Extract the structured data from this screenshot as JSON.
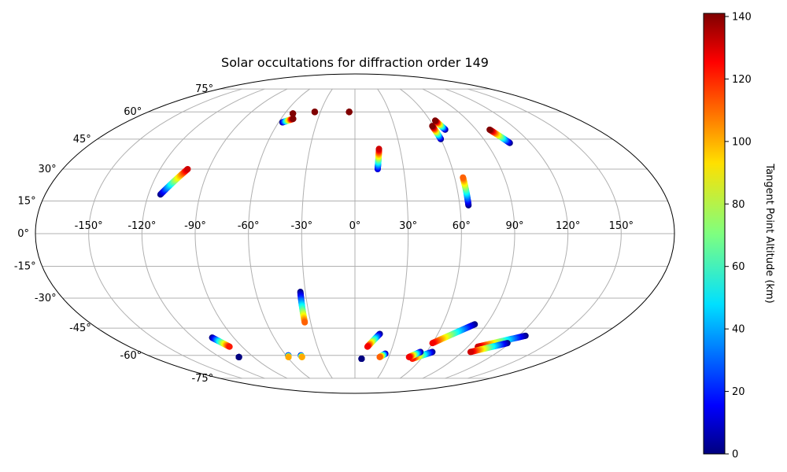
{
  "chart_data": {
    "type": "scatter",
    "projection": "mollweide",
    "title": "Solar occultations for diffraction order 149",
    "grid": true,
    "x_ticks": [
      -150,
      -120,
      -90,
      -60,
      -30,
      0,
      30,
      60,
      90,
      120,
      150
    ],
    "y_ticks": [
      -75,
      -60,
      -45,
      -30,
      -15,
      0,
      15,
      30,
      45,
      60,
      75
    ],
    "lon_range": [
      -180,
      180
    ],
    "lat_range": [
      -90,
      90
    ],
    "colorbar": {
      "label": "Tangent Point Altitude (km)",
      "range": [
        0,
        141
      ],
      "ticks": [
        0,
        20,
        40,
        60,
        80,
        100,
        120,
        140
      ],
      "colormap": "jet",
      "placement": "right"
    },
    "tracks": [
      {
        "lon0": -113,
        "lat0": 18,
        "alt0": 0,
        "lon1": -103,
        "lat1": 30,
        "alt1": 130
      },
      {
        "lon0": -57,
        "lat0": 54,
        "alt0": 0,
        "lon1": -50,
        "lat1": 56,
        "alt1": 141
      },
      {
        "lon0": -53,
        "lat0": 59,
        "alt0": 141,
        "lon1": -53,
        "lat1": 59,
        "alt1": 141
      },
      {
        "lon0": -35,
        "lat0": 60,
        "alt0": 141,
        "lon1": -35,
        "lat1": 60,
        "alt1": 141
      },
      {
        "lon0": -5,
        "lat0": 60,
        "alt0": 141,
        "lon1": -5,
        "lat1": 60,
        "alt1": 141
      },
      {
        "lon0": 14,
        "lat0": 30,
        "alt0": 10,
        "lon1": 16,
        "lat1": 40,
        "alt1": 130
      },
      {
        "lon0": 60,
        "lat0": 45,
        "alt0": 0,
        "lon1": 59,
        "lat1": 52,
        "alt1": 141
      },
      {
        "lon0": 67,
        "lat0": 50,
        "alt0": 0,
        "lon1": 64,
        "lat1": 55,
        "alt1": 141
      },
      {
        "lon0": 106,
        "lat0": 43,
        "alt0": 0,
        "lon1": 100,
        "lat1": 50,
        "alt1": 141
      },
      {
        "lon0": 65,
        "lat0": 13,
        "alt0": 0,
        "lon1": 65,
        "lat1": 26,
        "alt1": 110
      },
      {
        "lon0": -33,
        "lat0": -27,
        "alt0": 0,
        "lon1": -34,
        "lat1": -42,
        "alt1": 110
      },
      {
        "lon0": 18,
        "lat0": -48,
        "alt0": 0,
        "lon1": 10,
        "lat1": -55,
        "alt1": 125
      },
      {
        "lon0": 26,
        "lat0": -59,
        "alt0": 0,
        "lon1": 22,
        "lat1": -61,
        "alt1": 110
      },
      {
        "lon0": 6,
        "lat0": -62,
        "alt0": 0,
        "lon1": 6,
        "lat1": -62,
        "alt1": 0
      },
      {
        "lon0": 82,
        "lat0": -43,
        "alt0": 0,
        "lon1": 60,
        "lat1": -53,
        "alt1": 125
      },
      {
        "lon0": 65,
        "lat0": -58,
        "alt0": 0,
        "lon1": 52,
        "lat1": -62,
        "alt1": 120
      },
      {
        "lon0": 55,
        "lat0": -58,
        "alt0": 0,
        "lon1": 48,
        "lat1": -61,
        "alt1": 125
      },
      {
        "lon0": 125,
        "lat0": -49,
        "alt0": 0,
        "lon1": 98,
        "lat1": -55,
        "alt1": 130
      },
      {
        "lon0": 118,
        "lat0": -53,
        "alt0": 0,
        "lon1": 97,
        "lat1": -58,
        "alt1": 130
      },
      {
        "lon0": -106,
        "lat0": -50,
        "alt0": 0,
        "lon1": -100,
        "lat1": -55,
        "alt1": 120
      },
      {
        "lon0": -103,
        "lat0": -61,
        "alt0": 0,
        "lon1": -103,
        "lat1": -61,
        "alt1": 0
      },
      {
        "lon0": -58,
        "lat0": -60,
        "alt0": 0,
        "lon1": -59,
        "lat1": -61,
        "alt1": 100
      },
      {
        "lon0": -47,
        "lat0": -60,
        "alt0": 0,
        "lon1": -47,
        "lat1": -61,
        "alt1": 100
      }
    ]
  }
}
